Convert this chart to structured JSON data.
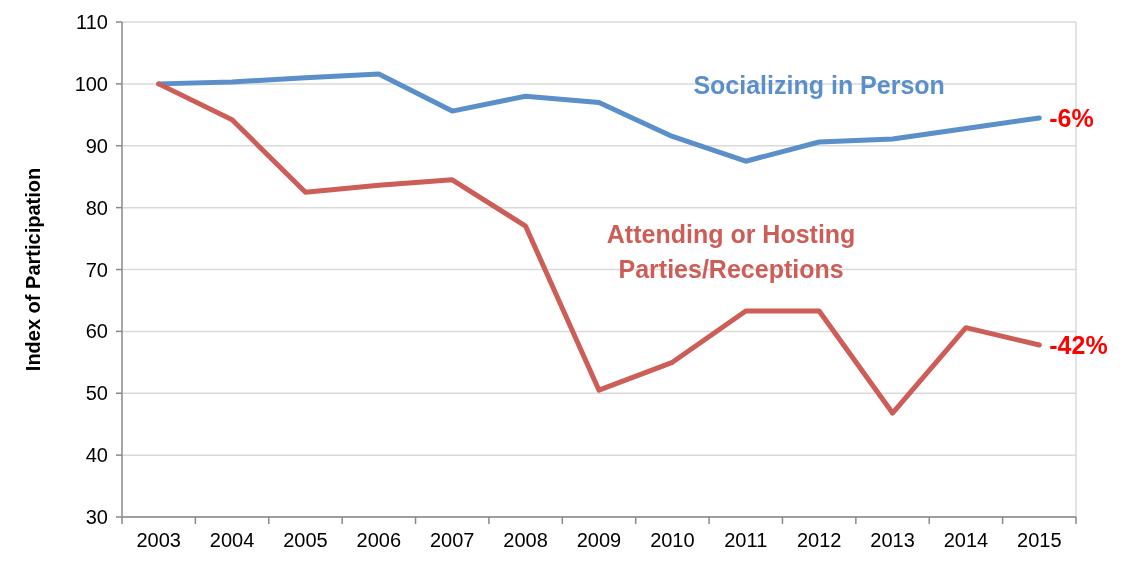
{
  "chart_data": {
    "type": "line",
    "ylabel": "Index of Participation",
    "categories": [
      "2003",
      "2004",
      "2005",
      "2006",
      "2007",
      "2008",
      "2009",
      "2010",
      "2011",
      "2012",
      "2013",
      "2014",
      "2015"
    ],
    "series": [
      {
        "name": "Socializing in Person",
        "color": "#5b8fc9",
        "values": [
          100,
          100.3,
          101,
          101.6,
          95.6,
          98,
          97,
          91.5,
          87.5,
          90.6,
          91.1,
          92.8,
          94.5
        ]
      },
      {
        "name": "Attending or Hosting Parties/Receptions",
        "color": "#cc5d57",
        "values": [
          100,
          94.2,
          82.5,
          83.6,
          84.5,
          77,
          50.5,
          55,
          63.3,
          63.3,
          46.8,
          60.6,
          57.8
        ]
      }
    ],
    "ylim": [
      30,
      110
    ],
    "yticks": [
      30,
      40,
      50,
      60,
      70,
      80,
      90,
      100,
      110
    ],
    "grid": "y",
    "legend": false,
    "marker": "none",
    "line_style": "solid",
    "annotations": [
      {
        "text": "-6%",
        "x": "2015",
        "y": 94.5
      },
      {
        "text": "-42%",
        "x": "2015",
        "y": 57.8
      }
    ]
  }
}
